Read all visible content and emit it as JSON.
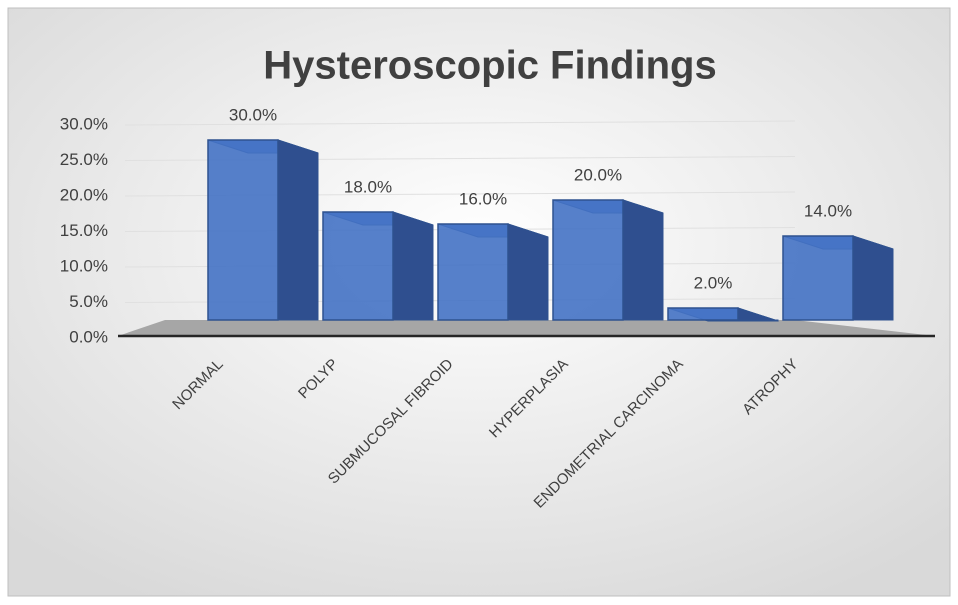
{
  "chart_data": {
    "type": "bar3d",
    "title": "Hysteroscopic Findings",
    "categories": [
      "NORMAL",
      "POLYP",
      "SUBMUCOSAL FIBROID",
      "HYPERPLASIA",
      "ENDOMETRIAL CARCINOMA",
      "ATROPHY"
    ],
    "values": [
      30,
      18,
      16,
      20,
      2,
      14
    ],
    "value_labels": [
      "30.0%",
      "18.0%",
      "16.0%",
      "20.0%",
      "2.0%",
      "14.0%"
    ],
    "color": "#4472c4",
    "ylim": [
      0,
      30
    ],
    "yticks": [
      {
        "value": 0,
        "label": "0.0%"
      },
      {
        "value": 5,
        "label": "5.0%"
      },
      {
        "value": 10,
        "label": "10.0%"
      },
      {
        "value": 15,
        "label": "15.0%"
      },
      {
        "value": 20,
        "label": "20.0%"
      },
      {
        "value": 25,
        "label": "25.0%"
      },
      {
        "value": 30,
        "label": "30.0%"
      }
    ],
    "grid": true
  }
}
